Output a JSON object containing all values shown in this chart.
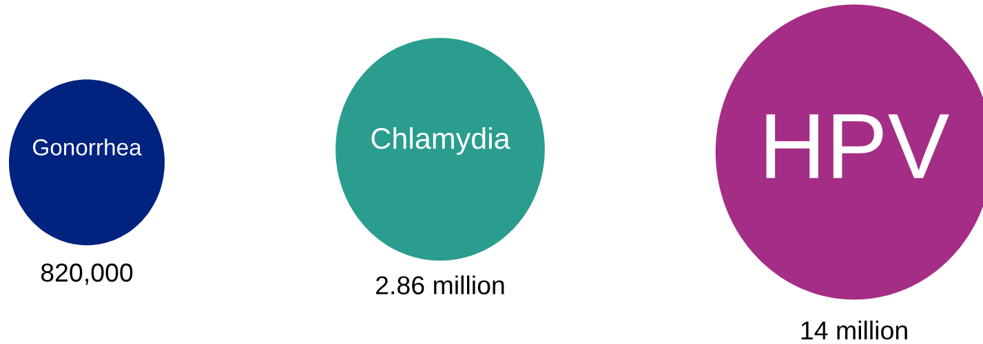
{
  "chart_data": {
    "type": "other",
    "categories": [
      "Gonorrhea",
      "Chlamydia",
      "HPV"
    ],
    "values": [
      820000,
      2860000,
      14000000
    ],
    "value_labels": [
      "820,000",
      "2.86 million",
      "14 million"
    ],
    "colors": [
      "#00237f",
      "#2a9d8f",
      "#a42d86"
    ]
  }
}
